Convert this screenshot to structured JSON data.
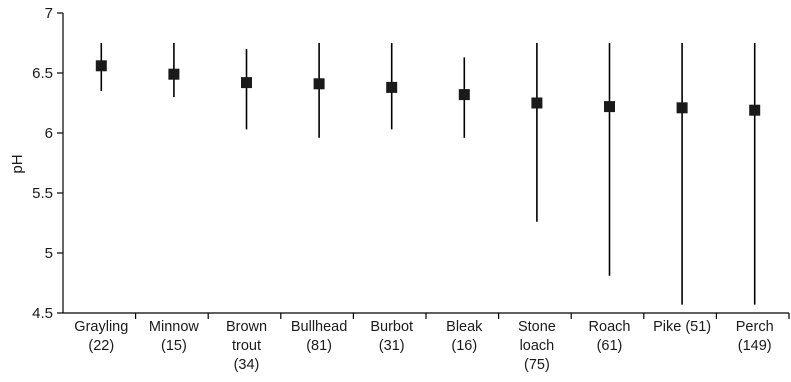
{
  "chart_data": {
    "type": "scatter",
    "title": "",
    "xlabel": "",
    "ylabel": "pH",
    "ylim": [
      4.5,
      7
    ],
    "yticks": [
      "4.5",
      "5",
      "5.5",
      "6",
      "6.5",
      "7"
    ],
    "grid": false,
    "legend": "none",
    "marker_color": "#1a1a1a",
    "categories": [
      {
        "lines": [
          "Grayling",
          "(22)"
        ],
        "mean": 6.56,
        "min": 6.35,
        "max": 6.75
      },
      {
        "lines": [
          "Minnow",
          "(15)"
        ],
        "mean": 6.49,
        "min": 6.3,
        "max": 6.75
      },
      {
        "lines": [
          "Brown",
          "trout",
          "(34)"
        ],
        "mean": 6.42,
        "min": 6.03,
        "max": 6.7
      },
      {
        "lines": [
          "Bullhead",
          "(81)"
        ],
        "mean": 6.41,
        "min": 5.96,
        "max": 6.75
      },
      {
        "lines": [
          "Burbot",
          "(31)"
        ],
        "mean": 6.38,
        "min": 6.03,
        "max": 6.75
      },
      {
        "lines": [
          "Bleak",
          "(16)"
        ],
        "mean": 6.32,
        "min": 5.96,
        "max": 6.63
      },
      {
        "lines": [
          "Stone",
          "loach",
          "(75)"
        ],
        "mean": 6.25,
        "min": 5.26,
        "max": 6.75
      },
      {
        "lines": [
          "Roach",
          "(61)"
        ],
        "mean": 6.22,
        "min": 4.81,
        "max": 6.75
      },
      {
        "lines": [
          "Pike (51)"
        ],
        "mean": 6.21,
        "min": 4.57,
        "max": 6.75
      },
      {
        "lines": [
          "Perch",
          "(149)"
        ],
        "mean": 6.19,
        "min": 4.57,
        "max": 6.75
      }
    ]
  }
}
